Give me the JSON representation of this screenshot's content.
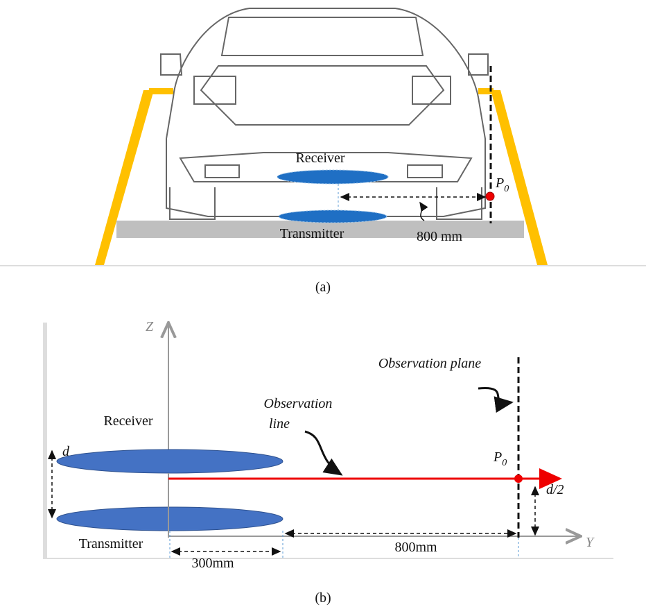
{
  "panel_a": {
    "receiver": "Receiver",
    "transmitter": "Transmitter",
    "distance": "800 mm",
    "point": {
      "text": "P",
      "sub": "0"
    },
    "caption": "(a)"
  },
  "panel_b": {
    "z_axis": "Z",
    "y_axis": "Y",
    "observation_plane": "Observation plane",
    "observation_line": [
      "Observation",
      "line"
    ],
    "receiver": "Receiver",
    "transmitter": "Transmitter",
    "gap": "d",
    "half_gap": "d/2",
    "point": {
      "text": "P",
      "sub": "0"
    },
    "distance": "800mm",
    "radius": "300mm",
    "caption": "(b)"
  }
}
